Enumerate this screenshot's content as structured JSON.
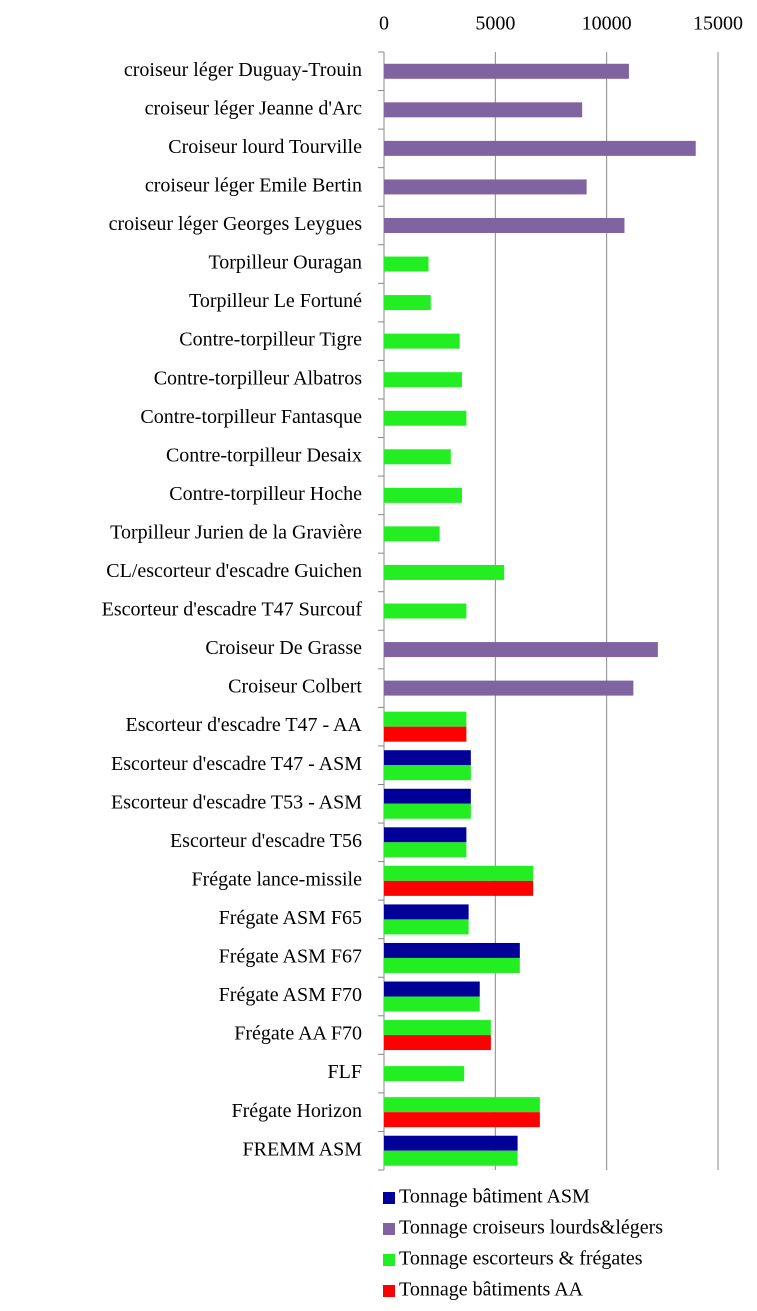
{
  "chart_data": {
    "type": "bar",
    "orientation": "horizontal",
    "categories": [
      "croiseur léger Duguay-Trouin",
      "croiseur léger Jeanne d'Arc",
      "Croiseur lourd Tourville",
      "croiseur léger Emile Bertin",
      "croiseur léger Georges Leygues",
      "Torpilleur Ouragan",
      "Torpilleur Le Fortuné",
      "Contre-torpilleur Tigre ",
      "Contre-torpilleur Albatros",
      "Contre-torpilleur Fantasque",
      "Contre-torpilleur Desaix",
      "Contre-torpilleur Hoche",
      "Torpilleur Jurien de la Gravière",
      "CL/escorteur d'escadre Guichen",
      "Escorteur d'escadre T47 Surcouf",
      "Croiseur De Grasse",
      "Croiseur Colbert",
      "Escorteur d'escadre T47 - AA",
      "Escorteur d'escadre T47 - ASM",
      "Escorteur d'escadre T53 - ASM",
      "Escorteur d'escadre T56",
      "Frégate lance-missile",
      "Frégate ASM F65",
      "Frégate ASM F67",
      "Frégate ASM F70",
      "Frégate AA F70",
      "FLF",
      "Frégate Horizon",
      "FREMM ASM"
    ],
    "series": [
      {
        "name": "Tonnage bâtiment ASM",
        "color": "#000099",
        "values": [
          null,
          null,
          null,
          null,
          null,
          null,
          null,
          null,
          null,
          null,
          null,
          null,
          null,
          null,
          null,
          null,
          null,
          null,
          3900,
          3900,
          3700,
          null,
          3800,
          6100,
          4300,
          null,
          null,
          null,
          6000
        ]
      },
      {
        "name": "Tonnage croiseurs lourds&légers",
        "color": "#8064a2",
        "values": [
          11000,
          8900,
          14000,
          9100,
          10800,
          null,
          null,
          null,
          null,
          null,
          null,
          null,
          null,
          null,
          null,
          12300,
          11200,
          null,
          null,
          null,
          null,
          null,
          null,
          null,
          null,
          null,
          null,
          null,
          null
        ]
      },
      {
        "name": "Tonnage escorteurs & frégates",
        "color": "#22ee22",
        "values": [
          null,
          null,
          null,
          null,
          null,
          2000,
          2100,
          3400,
          3500,
          3700,
          3000,
          3500,
          2500,
          5400,
          3700,
          null,
          null,
          3700,
          3900,
          3900,
          3700,
          6700,
          3800,
          6100,
          4300,
          4800,
          3600,
          7000,
          6000
        ]
      },
      {
        "name": "Tonnage bâtiments AA",
        "color": "#ff0000",
        "values": [
          null,
          null,
          null,
          null,
          null,
          null,
          null,
          null,
          null,
          null,
          null,
          null,
          null,
          null,
          null,
          null,
          null,
          3700,
          null,
          null,
          null,
          6700,
          null,
          null,
          null,
          4800,
          null,
          7000,
          null
        ]
      }
    ],
    "xlim": [
      0,
      15000
    ],
    "xticks": [
      0,
      5000,
      10000,
      15000
    ],
    "grid": true
  }
}
